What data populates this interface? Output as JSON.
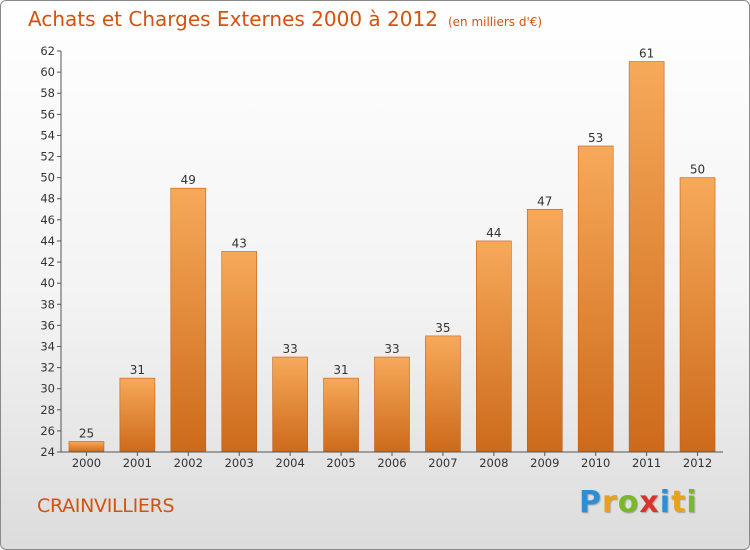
{
  "header": {
    "title": "Achats et Charges Externes 2000 à 2012",
    "unit": "(en milliers d'€)"
  },
  "footer": {
    "commune": "CRAINVILLIERS",
    "logo_letters": [
      {
        "ch": "P",
        "color": "#2a8fd6"
      },
      {
        "ch": "r",
        "color": "#e8a21a"
      },
      {
        "ch": "o",
        "color": "#7ab829"
      },
      {
        "ch": "x",
        "color": "#d8342c"
      },
      {
        "ch": "i",
        "color": "#2a8fd6"
      },
      {
        "ch": "t",
        "color": "#e8a21a"
      },
      {
        "ch": "i",
        "color": "#7ab829"
      }
    ]
  },
  "chart_data": {
    "type": "bar",
    "title": "Achats et Charges Externes 2000 à 2012",
    "subtitle": "(en milliers d'€)",
    "categories": [
      "2000",
      "2001",
      "2002",
      "2003",
      "2004",
      "2005",
      "2006",
      "2007",
      "2008",
      "2009",
      "2010",
      "2011",
      "2012"
    ],
    "values": [
      25,
      31,
      49,
      43,
      33,
      31,
      33,
      35,
      44,
      47,
      53,
      61,
      50
    ],
    "ylim": [
      24,
      62
    ],
    "yticks": [
      24,
      26,
      28,
      30,
      32,
      34,
      36,
      38,
      40,
      42,
      44,
      46,
      48,
      50,
      52,
      54,
      56,
      58,
      60,
      62
    ],
    "grid": false,
    "legend": "none",
    "colors": {
      "bar_light": "#f7a95a",
      "bar_dark": "#cc6a1a",
      "axis": "#555555",
      "text": "#333333"
    }
  }
}
